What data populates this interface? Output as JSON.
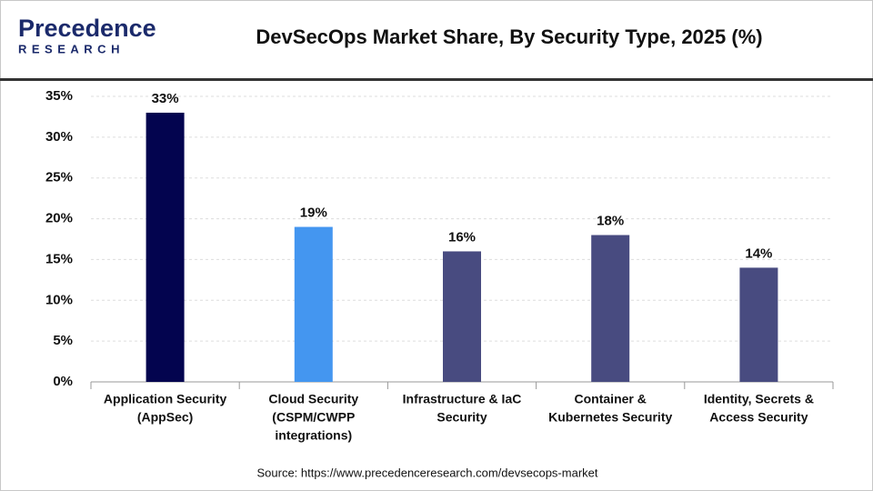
{
  "logo": {
    "name": "Precedence",
    "tagline": "RESEARCH"
  },
  "source": "Source: https://www.precedenceresearch.com/devsecops-market",
  "chart_data": {
    "type": "bar",
    "title": "DevSecOps Market Share, By Security Type, 2025 (%)",
    "categories": [
      [
        "Application Security",
        "(AppSec)"
      ],
      [
        "Cloud Security",
        "(CSPM/CWPP",
        "integrations)"
      ],
      [
        "Infrastructure & IaC",
        "Security"
      ],
      [
        "Container &",
        "Kubernetes Security"
      ],
      [
        "Identity, Secrets &",
        "Access Security"
      ]
    ],
    "values": [
      33,
      19,
      16,
      18,
      14
    ],
    "value_labels": [
      "33%",
      "19%",
      "16%",
      "18%",
      "14%"
    ],
    "colors": [
      "#03044f",
      "#4496f0",
      "#484b80",
      "#484b80",
      "#484b80"
    ],
    "ylim": [
      0,
      35
    ],
    "yticks": [
      {
        "value": 0,
        "label": "0%"
      },
      {
        "value": 5,
        "label": "5%"
      },
      {
        "value": 10,
        "label": "10%"
      },
      {
        "value": 15,
        "label": "15%"
      },
      {
        "value": 20,
        "label": "20%"
      },
      {
        "value": 25,
        "label": "25%"
      },
      {
        "value": 30,
        "label": "30%"
      },
      {
        "value": 35,
        "label": "35%"
      }
    ],
    "grid": true
  }
}
